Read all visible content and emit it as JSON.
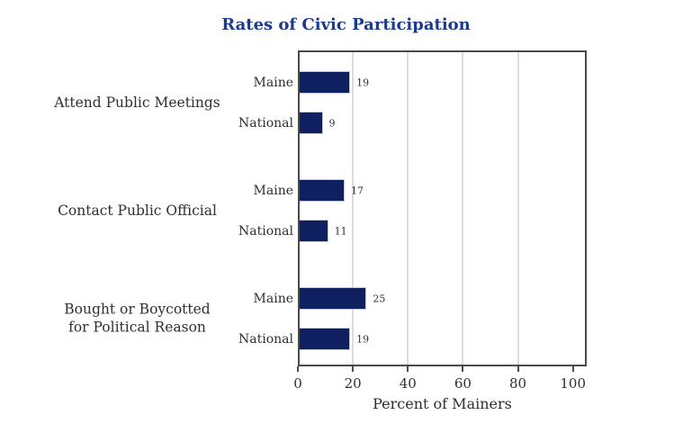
{
  "page": {
    "background": "#ffffff"
  },
  "chart_data": {
    "type": "bar",
    "orientation": "horizontal",
    "title": "Rates of Civic Participation",
    "xlabel": "Percent of Mainers",
    "xlim": [
      0,
      105
    ],
    "xticks": [
      0,
      20,
      40,
      60,
      80,
      100
    ],
    "gridlines": [
      20,
      40,
      60,
      80
    ],
    "legend": "none",
    "groups": [
      {
        "label": "Attend Public Meetings",
        "bars": [
          {
            "name": "Maine",
            "value": 19
          },
          {
            "name": "National",
            "value": 9
          }
        ]
      },
      {
        "label": "Contact Public Official",
        "bars": [
          {
            "name": "Maine",
            "value": 17
          },
          {
            "name": "National",
            "value": 11
          }
        ]
      },
      {
        "label": "Bought or Boycotted\nfor Political Reason",
        "bars": [
          {
            "name": "Maine",
            "value": 25
          },
          {
            "name": "National",
            "value": 19
          }
        ]
      }
    ]
  },
  "colors": {
    "bar_fill": "#0e205f",
    "bar_edge": "#c3c6d6",
    "title_text": "#1b3b8c",
    "axis_text": "#2f2f2f",
    "gridline": "#dcdcdc",
    "frame": "#4a4a4a"
  }
}
